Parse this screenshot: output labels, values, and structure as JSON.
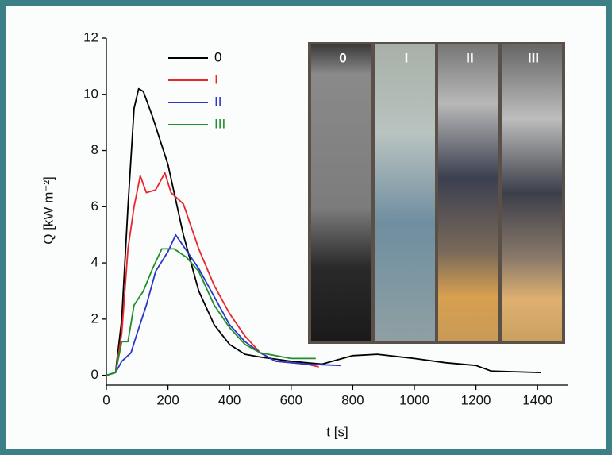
{
  "chart_data": {
    "type": "line",
    "x_label": "t [s]",
    "y_label": "Q [kW m⁻²]",
    "xlim": [
      0,
      1500
    ],
    "xticks": [
      0,
      200,
      400,
      600,
      800,
      1000,
      1200,
      1400
    ],
    "ylim": [
      -0.35,
      12
    ],
    "yticks": [
      0,
      2,
      4,
      6,
      8,
      10,
      12
    ],
    "legend": "upper left",
    "annotations": [
      "0",
      "I",
      "II",
      "III"
    ],
    "series": [
      {
        "name": "0",
        "color": "#000000",
        "x": [
          0,
          30,
          50,
          70,
          90,
          105,
          120,
          150,
          200,
          250,
          300,
          350,
          400,
          450,
          500,
          600,
          700,
          800,
          880,
          1000,
          1100,
          1200,
          1250,
          1410
        ],
        "values": [
          0,
          0.1,
          2,
          6,
          9.5,
          10.2,
          10.1,
          9.2,
          7.5,
          5,
          3,
          1.8,
          1.1,
          0.75,
          0.65,
          0.5,
          0.4,
          0.7,
          0.75,
          0.6,
          0.45,
          0.35,
          0.15,
          0.1
        ]
      },
      {
        "name": "I",
        "color": "#e8262b",
        "x": [
          0,
          30,
          50,
          70,
          90,
          110,
          130,
          160,
          190,
          210,
          250,
          300,
          350,
          400,
          450,
          500,
          550,
          600,
          650,
          690
        ],
        "values": [
          0,
          0.1,
          1.5,
          4.5,
          6,
          7.1,
          6.5,
          6.6,
          7.2,
          6.5,
          6.1,
          4.5,
          3.2,
          2.2,
          1.4,
          0.8,
          0.5,
          0.45,
          0.4,
          0.3
        ]
      },
      {
        "name": "II",
        "color": "#2b35c8",
        "x": [
          0,
          30,
          50,
          80,
          100,
          130,
          160,
          200,
          225,
          250,
          300,
          350,
          400,
          450,
          500,
          550,
          650,
          760
        ],
        "values": [
          0,
          0.1,
          0.5,
          0.8,
          1.5,
          2.5,
          3.7,
          4.4,
          5,
          4.6,
          3.8,
          2.8,
          1.8,
          1.2,
          0.8,
          0.5,
          0.4,
          0.35
        ]
      },
      {
        "name": "III",
        "color": "#1f8f2a",
        "x": [
          0,
          30,
          50,
          70,
          90,
          120,
          150,
          180,
          220,
          260,
          300,
          350,
          400,
          450,
          500,
          600,
          680
        ],
        "values": [
          0,
          0.1,
          1.2,
          1.2,
          2.5,
          3,
          3.8,
          4.5,
          4.5,
          4.2,
          3.7,
          2.5,
          1.7,
          1.1,
          0.8,
          0.6,
          0.6
        ]
      }
    ]
  }
}
